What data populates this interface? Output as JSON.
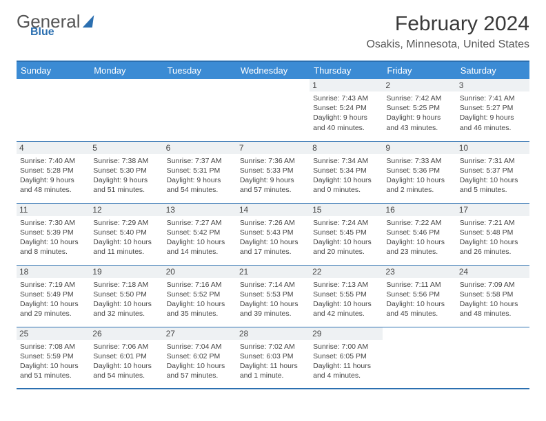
{
  "brand": {
    "line1": "General",
    "line2": "Blue"
  },
  "header": {
    "month": "February 2024",
    "location": "Osakis, Minnesota, United States"
  },
  "colors": {
    "accent": "#2b6fb0",
    "header_bg": "#3b8bd4",
    "daynum_bg": "#eef1f3",
    "text": "#444444"
  },
  "weekdays": [
    "Sunday",
    "Monday",
    "Tuesday",
    "Wednesday",
    "Thursday",
    "Friday",
    "Saturday"
  ],
  "weeks": [
    [
      {
        "n": null
      },
      {
        "n": null
      },
      {
        "n": null
      },
      {
        "n": null
      },
      {
        "n": 1,
        "sunrise": "7:43 AM",
        "sunset": "5:24 PM",
        "daylight": "9 hours and 40 minutes."
      },
      {
        "n": 2,
        "sunrise": "7:42 AM",
        "sunset": "5:25 PM",
        "daylight": "9 hours and 43 minutes."
      },
      {
        "n": 3,
        "sunrise": "7:41 AM",
        "sunset": "5:27 PM",
        "daylight": "9 hours and 46 minutes."
      }
    ],
    [
      {
        "n": 4,
        "sunrise": "7:40 AM",
        "sunset": "5:28 PM",
        "daylight": "9 hours and 48 minutes."
      },
      {
        "n": 5,
        "sunrise": "7:38 AM",
        "sunset": "5:30 PM",
        "daylight": "9 hours and 51 minutes."
      },
      {
        "n": 6,
        "sunrise": "7:37 AM",
        "sunset": "5:31 PM",
        "daylight": "9 hours and 54 minutes."
      },
      {
        "n": 7,
        "sunrise": "7:36 AM",
        "sunset": "5:33 PM",
        "daylight": "9 hours and 57 minutes."
      },
      {
        "n": 8,
        "sunrise": "7:34 AM",
        "sunset": "5:34 PM",
        "daylight": "10 hours and 0 minutes."
      },
      {
        "n": 9,
        "sunrise": "7:33 AM",
        "sunset": "5:36 PM",
        "daylight": "10 hours and 2 minutes."
      },
      {
        "n": 10,
        "sunrise": "7:31 AM",
        "sunset": "5:37 PM",
        "daylight": "10 hours and 5 minutes."
      }
    ],
    [
      {
        "n": 11,
        "sunrise": "7:30 AM",
        "sunset": "5:39 PM",
        "daylight": "10 hours and 8 minutes."
      },
      {
        "n": 12,
        "sunrise": "7:29 AM",
        "sunset": "5:40 PM",
        "daylight": "10 hours and 11 minutes."
      },
      {
        "n": 13,
        "sunrise": "7:27 AM",
        "sunset": "5:42 PM",
        "daylight": "10 hours and 14 minutes."
      },
      {
        "n": 14,
        "sunrise": "7:26 AM",
        "sunset": "5:43 PM",
        "daylight": "10 hours and 17 minutes."
      },
      {
        "n": 15,
        "sunrise": "7:24 AM",
        "sunset": "5:45 PM",
        "daylight": "10 hours and 20 minutes."
      },
      {
        "n": 16,
        "sunrise": "7:22 AM",
        "sunset": "5:46 PM",
        "daylight": "10 hours and 23 minutes."
      },
      {
        "n": 17,
        "sunrise": "7:21 AM",
        "sunset": "5:48 PM",
        "daylight": "10 hours and 26 minutes."
      }
    ],
    [
      {
        "n": 18,
        "sunrise": "7:19 AM",
        "sunset": "5:49 PM",
        "daylight": "10 hours and 29 minutes."
      },
      {
        "n": 19,
        "sunrise": "7:18 AM",
        "sunset": "5:50 PM",
        "daylight": "10 hours and 32 minutes."
      },
      {
        "n": 20,
        "sunrise": "7:16 AM",
        "sunset": "5:52 PM",
        "daylight": "10 hours and 35 minutes."
      },
      {
        "n": 21,
        "sunrise": "7:14 AM",
        "sunset": "5:53 PM",
        "daylight": "10 hours and 39 minutes."
      },
      {
        "n": 22,
        "sunrise": "7:13 AM",
        "sunset": "5:55 PM",
        "daylight": "10 hours and 42 minutes."
      },
      {
        "n": 23,
        "sunrise": "7:11 AM",
        "sunset": "5:56 PM",
        "daylight": "10 hours and 45 minutes."
      },
      {
        "n": 24,
        "sunrise": "7:09 AM",
        "sunset": "5:58 PM",
        "daylight": "10 hours and 48 minutes."
      }
    ],
    [
      {
        "n": 25,
        "sunrise": "7:08 AM",
        "sunset": "5:59 PM",
        "daylight": "10 hours and 51 minutes."
      },
      {
        "n": 26,
        "sunrise": "7:06 AM",
        "sunset": "6:01 PM",
        "daylight": "10 hours and 54 minutes."
      },
      {
        "n": 27,
        "sunrise": "7:04 AM",
        "sunset": "6:02 PM",
        "daylight": "10 hours and 57 minutes."
      },
      {
        "n": 28,
        "sunrise": "7:02 AM",
        "sunset": "6:03 PM",
        "daylight": "11 hours and 1 minute."
      },
      {
        "n": 29,
        "sunrise": "7:00 AM",
        "sunset": "6:05 PM",
        "daylight": "11 hours and 4 minutes."
      },
      {
        "n": null
      },
      {
        "n": null
      }
    ]
  ],
  "labels": {
    "sunrise": "Sunrise:",
    "sunset": "Sunset:",
    "daylight": "Daylight:"
  }
}
